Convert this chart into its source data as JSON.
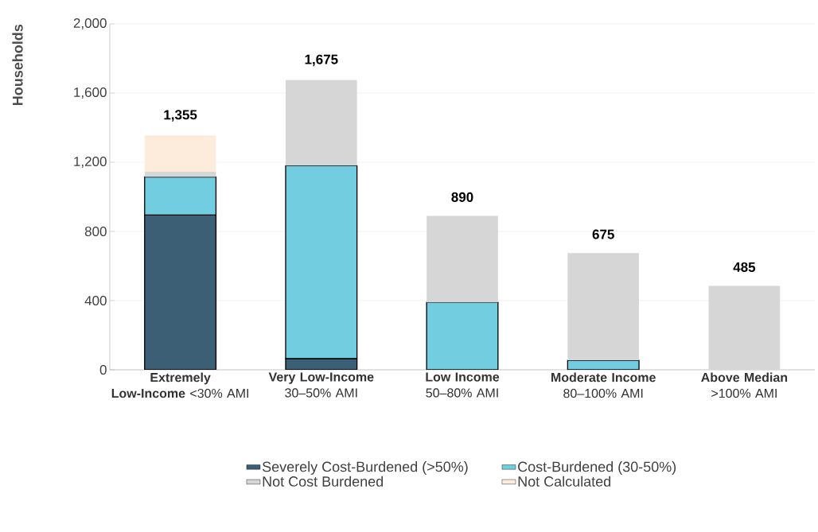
{
  "chart_data": {
    "type": "bar",
    "stacked": true,
    "ylabel": "Households",
    "categories": [
      "**Extremely Low-Income** <30% AMI",
      "**Very Low-Income** 30–50% AMI",
      "**Low Income** 50–80% AMI",
      "**Moderate Income** 80–100% AMI",
      "**Above Median** >100% AMI"
    ],
    "series": [
      {
        "name": "Severely Cost-Burdened (>50%)",
        "color": "#3d5f75",
        "values": [
          895,
          65,
          null,
          null,
          null
        ]
      },
      {
        "name": "Cost-Burdened (30-50%)",
        "color": "#72cde0",
        "values": [
          220,
          1115,
          390,
          55,
          null
        ]
      },
      {
        "name": "Not Cost Burdened",
        "color": "#d6d6d6",
        "values": [
          30,
          495,
          500,
          620,
          485
        ]
      },
      {
        "name": "Not Calculated",
        "color": "#fdebdc",
        "values": [
          210,
          null,
          null,
          null,
          null
        ]
      }
    ],
    "totals": [
      "1,355",
      "1,675",
      "890",
      "675",
      "485"
    ],
    "ylim": [
      0,
      2000
    ],
    "yticks": [
      {
        "value": 0,
        "label": "0"
      },
      {
        "value": 400,
        "label": "400"
      },
      {
        "value": 800,
        "label": "800"
      },
      {
        "value": 1200,
        "label": "1,200"
      },
      {
        "value": 1600,
        "label": "1,600"
      },
      {
        "value": 2000,
        "label": "2,000"
      }
    ],
    "grid": "y",
    "legend": "bottom"
  }
}
